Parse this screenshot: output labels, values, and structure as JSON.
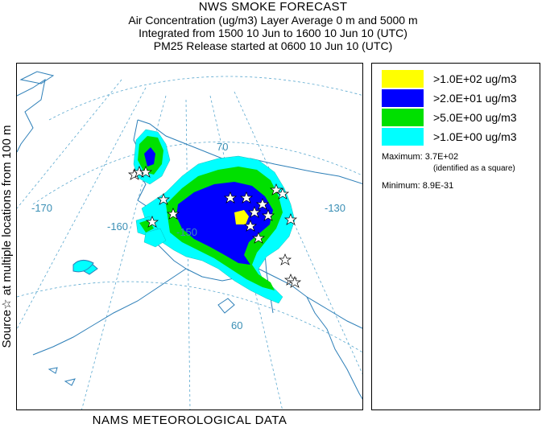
{
  "header": {
    "title": "NWS SMOKE FORECAST",
    "line1": "Air Concentration (ug/m3) Layer Average    0 m and  5000 m",
    "line2": "Integrated from 1500 10 Jun to 1600 10 Jun 10 (UTC)",
    "line3": "PM25 Release started at 0600 10 Jun 10 (UTC)"
  },
  "side_label": "Source☆  at multiple locations   from   100 m",
  "footer": "NAMS METEOROLOGICAL DATA",
  "legend": {
    "items": [
      {
        "label": ">1.0E+02 ug/m3",
        "color": "#ffff00"
      },
      {
        "label": ">2.0E+01 ug/m3",
        "color": "#0000ff"
      },
      {
        "label": ">5.0E+00 ug/m3",
        "color": "#00e000"
      },
      {
        "label": ">1.0E+00 ug/m3",
        "color": "#00ffff"
      }
    ],
    "maximum": "Maximum: 3.7E+02",
    "max_note": "(identified as a square)",
    "minimum": "Minimum: 8.9E-31"
  },
  "map": {
    "grid_labels": {
      "lat70": "70",
      "lat60": "60",
      "lon_170": "-170",
      "lon_160": "-160",
      "lon_150": "-150",
      "lon_130": "-130"
    },
    "colors": {
      "graticule": "#5aa8cf",
      "coast": "#2d7fb8",
      "conc_100": "#ffff00",
      "conc_20": "#0000ff",
      "conc_5": "#00e000",
      "conc_1": "#00ffff"
    }
  }
}
